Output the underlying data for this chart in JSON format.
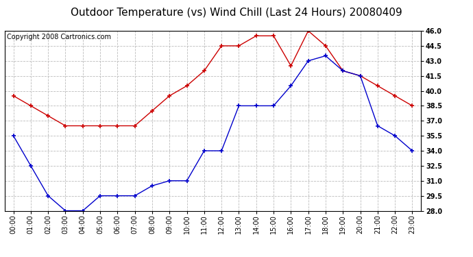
{
  "title": "Outdoor Temperature (vs) Wind Chill (Last 24 Hours) 20080409",
  "copyright": "Copyright 2008 Cartronics.com",
  "hours": [
    "00:00",
    "01:00",
    "02:00",
    "03:00",
    "04:00",
    "05:00",
    "06:00",
    "07:00",
    "08:00",
    "09:00",
    "10:00",
    "11:00",
    "12:00",
    "13:00",
    "14:00",
    "15:00",
    "16:00",
    "17:00",
    "18:00",
    "19:00",
    "20:00",
    "21:00",
    "22:00",
    "23:00"
  ],
  "temp": [
    39.5,
    38.5,
    37.5,
    36.5,
    36.5,
    36.5,
    36.5,
    36.5,
    38.0,
    39.5,
    40.5,
    42.0,
    44.5,
    44.5,
    45.5,
    45.5,
    42.5,
    46.0,
    44.5,
    42.0,
    41.5,
    40.5,
    39.5,
    38.5
  ],
  "windchill": [
    35.5,
    32.5,
    29.5,
    28.0,
    28.0,
    29.5,
    29.5,
    29.5,
    30.5,
    31.0,
    31.0,
    34.0,
    34.0,
    38.5,
    38.5,
    38.5,
    40.5,
    43.0,
    43.5,
    42.0,
    41.5,
    36.5,
    35.5,
    34.0
  ],
  "temp_color": "#cc0000",
  "windchill_color": "#0000cc",
  "grid_color": "#bbbbbb",
  "bg_color": "#ffffff",
  "plot_bg_color": "#ffffff",
  "ylim_min": 28.0,
  "ylim_max": 46.0,
  "ytick_interval": 1.5,
  "title_fontsize": 11,
  "copyright_fontsize": 7,
  "tick_fontsize": 7,
  "ylabel_fontweight": "bold"
}
